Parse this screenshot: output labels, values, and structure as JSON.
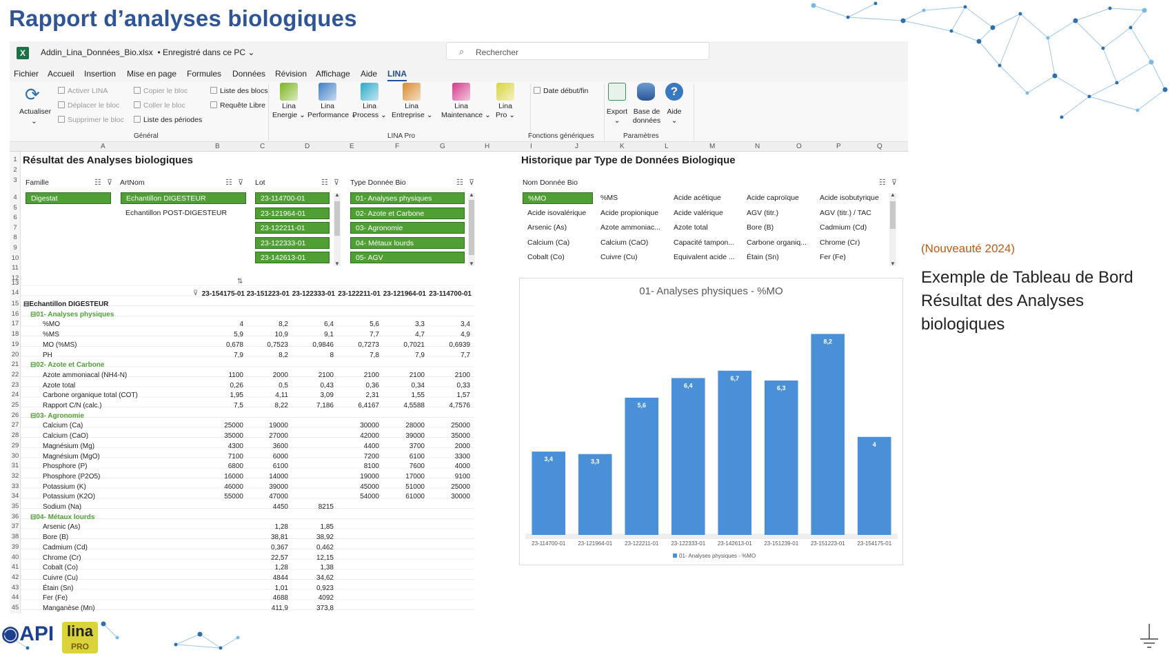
{
  "page_title": "Rapport d’analyses biologiques",
  "window": {
    "filename": "Addin_Lina_Données_Bio.xlsx",
    "saved_status": "• Enregistré dans ce PC",
    "search_placeholder": "Rechercher"
  },
  "menu": [
    "Fichier",
    "Accueil",
    "Insertion",
    "Mise en page",
    "Formules",
    "Données",
    "Révision",
    "Affichage",
    "Aide",
    "LINA"
  ],
  "ribbon": {
    "actualiser": "Actualiser",
    "general_items": [
      {
        "label": "Activer LINA",
        "enabled": false
      },
      {
        "label": "Déplacer le bloc",
        "enabled": false
      },
      {
        "label": "Supprimer le bloc",
        "enabled": false
      },
      {
        "label": "Copier le bloc",
        "enabled": false
      },
      {
        "label": "Coller le bloc",
        "enabled": false
      },
      {
        "label": "Liste des périodes",
        "enabled": true
      },
      {
        "label": "Liste des blocs",
        "enabled": true
      },
      {
        "label": "Requête Libre",
        "enabled": true
      }
    ],
    "group_general": "Général",
    "lina_pro": [
      {
        "line1": "Lina",
        "line2": "Energie ⌄",
        "color": "#7ab51d"
      },
      {
        "line1": "Lina",
        "line2": "Performance ⌄",
        "color": "#3d7fc4"
      },
      {
        "line1": "Lina",
        "line2": "Process ⌄",
        "color": "#2aa9c9"
      },
      {
        "line1": "Lina",
        "line2": "Entreprise ⌄",
        "color": "#d98a2b"
      },
      {
        "line1": "Lina",
        "line2": "Maintenance ⌄",
        "color": "#d43a8a"
      },
      {
        "line1": "Lina",
        "line2": "Pro ⌄",
        "color": "#d8d43a"
      }
    ],
    "group_lina_pro": "LINA Pro",
    "date_debut_fin": "Date début/fin",
    "group_fonctions": "Fonctions génériques",
    "export": "Export",
    "base_line1": "Base de",
    "base_line2": "données",
    "aide": "Aide",
    "group_parametres": "Paramètres"
  },
  "columns": [
    "A",
    "B",
    "C",
    "D",
    "E",
    "F",
    "G",
    "H",
    "I",
    "J",
    "K",
    "L",
    "M",
    "N",
    "O",
    "P",
    "Q"
  ],
  "left_section_title": "Résultat des Analyses biologiques",
  "right_section_title": "Historique par Type de Données Biologique",
  "slicers": {
    "famille": {
      "header": "Famille",
      "items": [
        {
          "label": "Digestat",
          "selected": true
        }
      ]
    },
    "artnom": {
      "header": "ArtNom",
      "items": [
        {
          "label": "Echantillon DIGESTEUR",
          "selected": true
        },
        {
          "label": "Echantillon POST-DIGESTEUR",
          "selected": false
        }
      ]
    },
    "lot": {
      "header": "Lot",
      "items": [
        {
          "label": "23-114700-01",
          "selected": true
        },
        {
          "label": "23-121964-01",
          "selected": true
        },
        {
          "label": "23-122211-01",
          "selected": true
        },
        {
          "label": "23-122333-01",
          "selected": true
        },
        {
          "label": "23-142613-01",
          "selected": true
        }
      ]
    },
    "type": {
      "header": "Type Donnée Bio",
      "items": [
        {
          "label": "01- Analyses physiques",
          "selected": true
        },
        {
          "label": "02- Azote et Carbone",
          "selected": true
        },
        {
          "label": "03- Agronomie",
          "selected": true
        },
        {
          "label": "04- Métaux lourds",
          "selected": true
        },
        {
          "label": "05- AGV",
          "selected": true
        }
      ]
    },
    "nom": {
      "header": "Nom Donnée Bio",
      "items": [
        {
          "label": "%MO",
          "selected": true
        },
        {
          "label": "%MS"
        },
        {
          "label": "Acide acétique"
        },
        {
          "label": "Acide caproïque"
        },
        {
          "label": "Acide isobutyrique"
        },
        {
          "label": "Acide isovalérique"
        },
        {
          "label": "Acide propionique"
        },
        {
          "label": "Acide valérique"
        },
        {
          "label": "AGV (titr.)"
        },
        {
          "label": "AGV (titr.) / TAC"
        },
        {
          "label": "Arsenic (As)"
        },
        {
          "label": "Azote ammoniac..."
        },
        {
          "label": "Azote total"
        },
        {
          "label": "Bore (B)"
        },
        {
          "label": "Cadmium (Cd)"
        },
        {
          "label": "Calcium (Ca)"
        },
        {
          "label": "Calcium (CaO)"
        },
        {
          "label": "Capacité tampon..."
        },
        {
          "label": "Carbone organiq..."
        },
        {
          "label": "Chrome (Cr)"
        },
        {
          "label": "Cobalt (Co)"
        },
        {
          "label": "Cuivre (Cu)"
        },
        {
          "label": "Equivalent acide ..."
        },
        {
          "label": "Étain (Sn)"
        },
        {
          "label": "Fer (Fe)"
        }
      ]
    }
  },
  "pivot": {
    "lot_headers": [
      "23-154175-01",
      "23-151223-01",
      "23-122333-01",
      "23-122211-01",
      "23-121964-01",
      "23-114700-01"
    ],
    "rows": [
      {
        "label": "⊟Echantillon DIGESTEUR",
        "level": 0,
        "values": [
          "",
          "",
          "",
          "",
          "",
          ""
        ]
      },
      {
        "label": "⊟01- Analyses physiques",
        "level": 1,
        "values": [
          "",
          "",
          "",
          "",
          "",
          ""
        ]
      },
      {
        "label": "%MO",
        "level": 2,
        "values": [
          "4",
          "8,2",
          "6,4",
          "5,6",
          "3,3",
          "3,4"
        ]
      },
      {
        "label": "%MS",
        "level": 2,
        "values": [
          "5,9",
          "10,9",
          "9,1",
          "7,7",
          "4,7",
          "4,9"
        ]
      },
      {
        "label": "MO (%MS)",
        "level": 2,
        "values": [
          "0,678",
          "0,7523",
          "0,9846",
          "0,7273",
          "0,7021",
          "0,6939"
        ]
      },
      {
        "label": "PH",
        "level": 2,
        "values": [
          "7,9",
          "8,2",
          "8",
          "7,8",
          "7,9",
          "7,7"
        ]
      },
      {
        "label": "⊟02- Azote et Carbone",
        "level": 1,
        "values": [
          "",
          "",
          "",
          "",
          "",
          ""
        ]
      },
      {
        "label": "Azote ammoniacal (NH4-N)",
        "level": 2,
        "values": [
          "1100",
          "2000",
          "2100",
          "2100",
          "2100",
          "2100"
        ]
      },
      {
        "label": "Azote total",
        "level": 2,
        "values": [
          "0,26",
          "0,5",
          "0,43",
          "0,36",
          "0,34",
          "0,33"
        ]
      },
      {
        "label": "Carbone organique total (COT)",
        "level": 2,
        "values": [
          "1,95",
          "4,11",
          "3,09",
          "2,31",
          "1,55",
          "1,57"
        ]
      },
      {
        "label": "Rapport C/N (calc.)",
        "level": 2,
        "values": [
          "7,5",
          "8,22",
          "7,186",
          "6,4167",
          "4,5588",
          "4,7576"
        ]
      },
      {
        "label": "⊟03- Agronomie",
        "level": 1,
        "values": [
          "",
          "",
          "",
          "",
          "",
          ""
        ]
      },
      {
        "label": "Calcium (Ca)",
        "level": 2,
        "values": [
          "25000",
          "19000",
          "",
          "30000",
          "28000",
          "25000"
        ]
      },
      {
        "label": "Calcium (CaO)",
        "level": 2,
        "values": [
          "35000",
          "27000",
          "",
          "42000",
          "39000",
          "35000"
        ]
      },
      {
        "label": "Magnésium (Mg)",
        "level": 2,
        "values": [
          "4300",
          "3600",
          "",
          "4400",
          "3700",
          "2000"
        ]
      },
      {
        "label": "Magnésium (MgO)",
        "level": 2,
        "values": [
          "7100",
          "6000",
          "",
          "7200",
          "6100",
          "3300"
        ]
      },
      {
        "label": "Phosphore (P)",
        "level": 2,
        "values": [
          "6800",
          "6100",
          "",
          "8100",
          "7600",
          "4000"
        ]
      },
      {
        "label": "Phosphore (P2O5)",
        "level": 2,
        "values": [
          "16000",
          "14000",
          "",
          "19000",
          "17000",
          "9100"
        ]
      },
      {
        "label": "Potassium (K)",
        "level": 2,
        "values": [
          "46000",
          "39000",
          "",
          "45000",
          "51000",
          "25000"
        ]
      },
      {
        "label": "Potassium (K2O)",
        "level": 2,
        "values": [
          "55000",
          "47000",
          "",
          "54000",
          "61000",
          "30000"
        ]
      },
      {
        "label": "Sodium (Na)",
        "level": 2,
        "values": [
          "",
          "4450",
          "8215",
          "",
          "",
          ""
        ]
      },
      {
        "label": "⊟04- Métaux lourds",
        "level": 1,
        "values": [
          "",
          "",
          "",
          "",
          "",
          ""
        ]
      },
      {
        "label": "Arsenic (As)",
        "level": 2,
        "values": [
          "",
          "1,28",
          "1,85",
          "",
          "",
          ""
        ]
      },
      {
        "label": "Bore (B)",
        "level": 2,
        "values": [
          "",
          "38,81",
          "38,92",
          "",
          "",
          ""
        ]
      },
      {
        "label": "Cadmium (Cd)",
        "level": 2,
        "values": [
          "",
          "0,367",
          "0,462",
          "",
          "",
          ""
        ]
      },
      {
        "label": "Chrome (Cr)",
        "level": 2,
        "values": [
          "",
          "22,57",
          "12,15",
          "",
          "",
          ""
        ]
      },
      {
        "label": "Cobalt (Co)",
        "level": 2,
        "values": [
          "",
          "1,28",
          "1,38",
          "",
          "",
          ""
        ]
      },
      {
        "label": "Cuivre (Cu)",
        "level": 2,
        "values": [
          "",
          "4844",
          "34,62",
          "",
          "",
          ""
        ]
      },
      {
        "label": "Étain (Sn)",
        "level": 2,
        "values": [
          "",
          "1,01",
          "0,923",
          "",
          "",
          ""
        ]
      },
      {
        "label": "Fer (Fe)",
        "level": 2,
        "values": [
          "",
          "4688",
          "4092",
          "",
          "",
          ""
        ]
      },
      {
        "label": "Manganèse (Mn)",
        "level": 2,
        "values": [
          "",
          "411,9",
          "373,8",
          "",
          "",
          ""
        ]
      }
    ]
  },
  "chart_data": {
    "type": "bar",
    "title": "01- Analyses physiques - %MO",
    "categories": [
      "23-114700-01",
      "23-121964-01",
      "23-122211-01",
      "23-122333-01",
      "23-142613-01",
      "23-151239-01",
      "23-151223-01",
      "23-154175-01"
    ],
    "series": [
      {
        "name": "01- Analyses physiques - %MO",
        "values": [
          3.4,
          3.3,
          5.6,
          6.4,
          6.7,
          6.3,
          8.2,
          4
        ]
      }
    ],
    "data_labels": [
      "3,4",
      "3,3",
      "5,6",
      "6,4",
      "6,7",
      "6,3",
      "8,2",
      "4"
    ],
    "ylim": [
      0,
      9
    ],
    "legend": "bottom",
    "bar_color": "#4a90d9"
  },
  "aside": {
    "tag": "(Nouveauté 2024)",
    "line1": "Exemple de Tableau de Bord",
    "line2": "Résultat des Analyses",
    "line3": "biologiques"
  },
  "logos": {
    "api": "API",
    "lina": "lina",
    "lina_sub": "PRO"
  }
}
